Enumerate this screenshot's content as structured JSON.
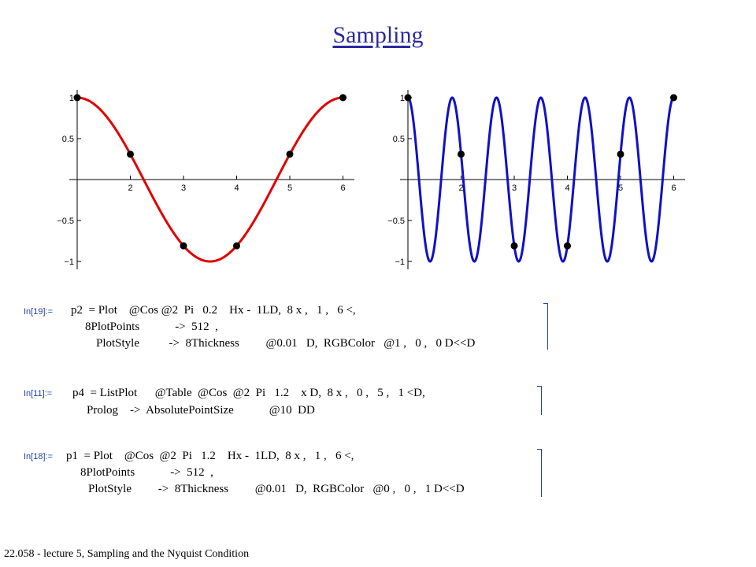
{
  "page": {
    "title": "Sampling",
    "footer": "22.058 - lecture 5, Sampling and the Nyquist Condition"
  },
  "colors": {
    "red_curve": "#e00000",
    "blue_curve": "#1010c8",
    "prompt": "#1f3fb0",
    "title": "#2a2aa0"
  },
  "chart_data": [
    {
      "type": "line",
      "title": "",
      "xlabel": "",
      "ylabel": "",
      "xlim": [
        1,
        6
      ],
      "ylim": [
        -1,
        1
      ],
      "x_ticks": [
        2,
        3,
        4,
        5,
        6
      ],
      "y_ticks": [
        1,
        0.5,
        -0.5,
        -1
      ],
      "y_tick_labels": [
        "1",
        "0.5",
        "−0.5",
        "−1"
      ],
      "grid": false,
      "series": [
        {
          "kind": "line",
          "function": "cos(2*pi*0.2*(x-1))",
          "x_range": [
            1,
            6
          ],
          "color": "#e00000"
        },
        {
          "kind": "points",
          "x": [
            1,
            2,
            3,
            4,
            5,
            6
          ],
          "y": [
            1,
            0.309,
            -0.809,
            -0.809,
            0.309,
            1
          ],
          "color": "#000000"
        }
      ]
    },
    {
      "type": "line",
      "title": "",
      "xlabel": "",
      "ylabel": "",
      "xlim": [
        1,
        6
      ],
      "ylim": [
        -1,
        1
      ],
      "x_ticks": [
        2,
        3,
        4,
        5,
        6
      ],
      "y_ticks": [
        1,
        0.5,
        -0.5,
        -1
      ],
      "y_tick_labels": [
        "1",
        "0.5",
        "−0.5",
        "−1"
      ],
      "grid": false,
      "series": [
        {
          "kind": "line",
          "function": "cos(2*pi*1.2*(x-1))",
          "x_range": [
            1,
            6
          ],
          "color": "#1010c8"
        },
        {
          "kind": "points",
          "x": [
            1,
            2,
            3,
            4,
            5,
            6
          ],
          "y": [
            1,
            0.309,
            -0.809,
            -0.809,
            0.309,
            1
          ],
          "color": "#000000"
        }
      ]
    }
  ],
  "cells": [
    {
      "prompt": "In[19]:=",
      "lines": [
        "p2  = Plot    @Cos @2  Pi   0.2    Hx -  1LD,  8 x ,   1 ,   6 <,",
        "8PlotPoints            ->  512  ,",
        "PlotStyle          ->  8Thickness         @0.01   D,  RGBColor   @1 ,   0 ,   0 D<<D"
      ]
    },
    {
      "prompt": "In[11]:=",
      "lines": [
        "p4  = ListPlot      @Table  @Cos  @2  Pi   1.2    x D,  8 x ,   0 ,   5 ,   1 <D,",
        "Prolog    ->  AbsolutePointSize            @10  DD"
      ]
    },
    {
      "prompt": "In[18]:=",
      "lines": [
        "p1  = Plot    @Cos  @2  Pi   1.2    Hx -  1LD,  8 x ,   1 ,   6 <,",
        "8PlotPoints            ->  512  ,",
        "PlotStyle         ->  8Thickness         @0.01   D,  RGBColor   @0 ,   0 ,   1 D<<D"
      ]
    }
  ]
}
